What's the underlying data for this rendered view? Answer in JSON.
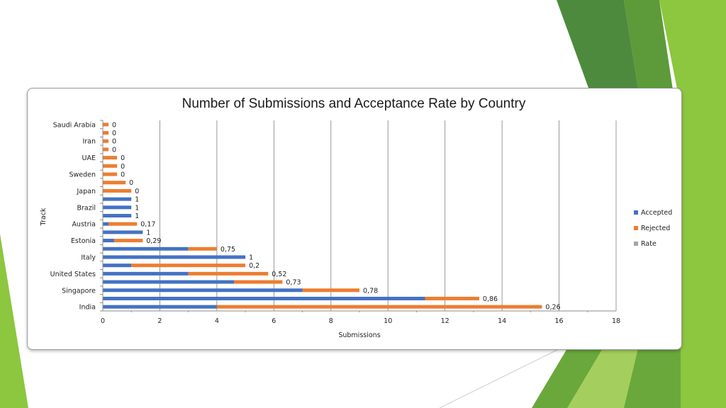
{
  "slide": {
    "colors": {
      "green_light": "#8dc63f",
      "green_mid": "#6aa83c",
      "green_dark": "#4e8a3e"
    }
  },
  "chart_data": {
    "type": "bar",
    "orientation": "horizontal",
    "stacked": true,
    "title": "Number of Submissions and Acceptance Rate by Country",
    "xlabel": "Submissions",
    "ylabel": "Track",
    "xlim": [
      0,
      18
    ],
    "xticks": [
      0,
      2,
      4,
      6,
      8,
      10,
      12,
      14,
      16,
      18
    ],
    "grid": "vertical",
    "legend_position": "right",
    "categories": [
      "India",
      "",
      "Singapore",
      "",
      "United States",
      "",
      "Italy",
      "",
      "Estonia",
      "",
      "Austria",
      "",
      "Brazil",
      "",
      "Japan",
      "",
      "Sweden",
      "",
      "UAE",
      "",
      "Iran",
      "",
      "Saudi Arabia"
    ],
    "series": [
      {
        "name": "Accepted",
        "color": "#4472c4",
        "values": [
          4,
          11.3,
          7,
          4.6,
          3,
          1,
          5,
          3,
          0.4,
          1.4,
          0.2,
          1,
          1,
          1,
          0,
          0,
          0,
          0,
          0,
          0,
          0,
          0,
          0
        ]
      },
      {
        "name": "Rejected",
        "color": "#ed7d31",
        "values": [
          11.4,
          1.9,
          2,
          1.7,
          2.8,
          4,
          0,
          1,
          1,
          0,
          1,
          0,
          0,
          0,
          1,
          0.8,
          0.5,
          0.5,
          0.5,
          0.2,
          0.2,
          0.2,
          0.2
        ]
      },
      {
        "name": "Rate",
        "color": "#a5a5a5",
        "values": [
          0.26,
          0.86,
          0.78,
          0.73,
          0.52,
          0.2,
          1,
          0.75,
          0.29,
          1,
          0.17,
          1,
          1,
          1,
          0,
          0,
          0,
          0,
          0,
          0,
          0,
          0,
          0
        ]
      }
    ],
    "rate_labels": [
      "0,26",
      "0,86",
      "0,78",
      "0,73",
      "0,52",
      "0,2",
      "1",
      "0,75",
      "0,29",
      "1",
      "0,17",
      "1",
      "1",
      "1",
      "0",
      "0",
      "0",
      "0",
      "0",
      "0",
      "0",
      "0",
      "0"
    ]
  }
}
